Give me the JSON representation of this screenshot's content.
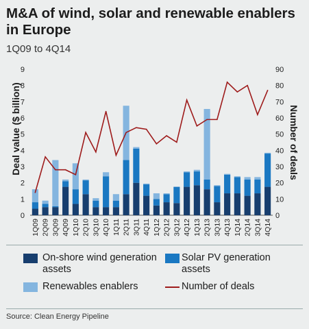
{
  "title": "M&A of wind, solar and renewable enablers in Europe",
  "subtitle": "1Q09 to 4Q14",
  "source": "Source: Clean Energy Pipeline",
  "colors": {
    "onshore": "#173e6e",
    "solar": "#1a78c2",
    "enablers": "#84b5df",
    "deals_line": "#9e1b1b",
    "background": "#eceeee"
  },
  "legend": [
    {
      "label": "On-shore wind generation assets",
      "color": "#173e6e",
      "kind": "box"
    },
    {
      "label": "Solar PV generation assets",
      "color": "#1a78c2",
      "kind": "box"
    },
    {
      "label": "Renewables enablers",
      "color": "#84b5df",
      "kind": "box"
    },
    {
      "label": "Number of deals",
      "color": "#9e1b1b",
      "kind": "line"
    }
  ],
  "chart_data": {
    "type": "bar",
    "stacked": true,
    "categories": [
      "1Q09",
      "2Q09",
      "3Q09",
      "4Q09",
      "1Q10",
      "2Q10",
      "3Q10",
      "4Q10",
      "1Q11",
      "2Q11",
      "3Q11",
      "4Q11",
      "1Q12",
      "2Q12",
      "3Q12",
      "4Q12",
      "1Q13",
      "2Q13",
      "3Q13",
      "4Q13",
      "1Q14",
      "2Q14",
      "3Q14",
      "4Q14"
    ],
    "series": [
      {
        "name": "On-shore wind generation assets",
        "values": [
          0.4,
          0.5,
          0.5,
          1.75,
          0.7,
          1.3,
          0.5,
          0.5,
          0.5,
          1.3,
          2.0,
          1.2,
          0.6,
          0.8,
          0.75,
          1.75,
          1.85,
          1.6,
          0.8,
          1.35,
          1.35,
          1.2,
          1.35,
          1.75
        ]
      },
      {
        "name": "Solar PV generation assets",
        "values": [
          0.4,
          0.2,
          0.05,
          0.35,
          0.9,
          0.85,
          0.4,
          1.9,
          0.4,
          2.1,
          2.1,
          0.7,
          0.4,
          0.5,
          1.0,
          0.9,
          0.85,
          0.6,
          1.0,
          1.15,
          1.0,
          1.0,
          0.85,
          2.05
        ]
      },
      {
        "name": "Renewables enablers",
        "values": [
          0.8,
          0.2,
          2.85,
          0.1,
          1.6,
          0.05,
          0.15,
          0.25,
          0.4,
          3.35,
          0.1,
          0.05,
          0.35,
          0.05,
          0.0,
          0.05,
          0.1,
          4.35,
          0.05,
          0.05,
          0.05,
          0.15,
          0.15,
          0.05
        ]
      },
      {
        "name": "Number of deals",
        "axis": "right",
        "type": "line",
        "values": [
          14,
          36,
          28,
          28,
          25,
          51,
          39,
          64,
          37,
          51,
          54,
          53,
          44,
          49,
          45,
          71,
          55,
          59,
          59,
          82,
          76,
          80,
          62,
          77
        ]
      }
    ],
    "ylabel": "Deal value ($ billion)",
    "ylim": [
      0,
      9
    ],
    "yticks": [
      "0",
      "1",
      "2",
      "3",
      "4",
      "5",
      "6",
      "7",
      "8",
      "9"
    ],
    "y2label": "Number of deals",
    "y2lim": [
      0,
      90
    ],
    "y2ticks": [
      "0",
      "10",
      "20",
      "30",
      "40",
      "50",
      "60",
      "70",
      "80",
      "90"
    ],
    "grid": false,
    "legend_position": "bottom"
  }
}
